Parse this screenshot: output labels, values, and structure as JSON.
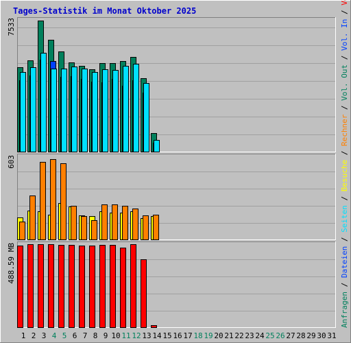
{
  "colors": {
    "background": "#c0c0c0",
    "grid": "#a0a0a0",
    "title": "#0000cc",
    "anfragen": "#00805c",
    "dateien": "#0040ff",
    "seiten": "#00e0ff",
    "besuche": "#ffff00",
    "rechner": "#ff8000",
    "volumen": "#ff0000",
    "weekend": "#00805c",
    "weekday": "#000000"
  },
  "chart_data": [
    {
      "type": "bar",
      "title": "Tages-Statistik im Monat Oktober 2025",
      "ymax_label": "7533",
      "ylim": [
        0,
        7533
      ],
      "grid": true,
      "categories": [
        "1",
        "2",
        "3",
        "4",
        "5",
        "6",
        "7",
        "8",
        "9",
        "10",
        "11",
        "12",
        "13",
        "14",
        "15",
        "16",
        "17",
        "18",
        "19",
        "20",
        "21",
        "22",
        "23",
        "24",
        "25",
        "26",
        "27",
        "28",
        "29",
        "30",
        "31"
      ],
      "weekend": [
        "4",
        "5",
        "11",
        "12",
        "18",
        "19",
        "25",
        "26"
      ],
      "series": [
        {
          "name": "Anfragen",
          "values": [
            4850,
            5250,
            7533,
            6450,
            5750,
            5150,
            4950,
            4750,
            5100,
            5100,
            5200,
            5450,
            4250,
            1100,
            0,
            0,
            0,
            0,
            0,
            0,
            0,
            0,
            0,
            0,
            0,
            0,
            0,
            0,
            0,
            0,
            0
          ]
        },
        {
          "name": "Dateien",
          "values": [
            4100,
            4400,
            5300,
            5200,
            4300,
            4350,
            4200,
            4050,
            4000,
            4200,
            3800,
            4100,
            3400,
            550,
            0,
            0,
            0,
            0,
            0,
            0,
            0,
            0,
            0,
            0,
            0,
            0,
            0,
            0,
            0,
            0,
            0
          ]
        },
        {
          "name": "Seiten",
          "values": [
            4600,
            4850,
            5700,
            4800,
            4800,
            4900,
            4800,
            4600,
            4750,
            4700,
            4950,
            5050,
            3950,
            700,
            0,
            0,
            0,
            0,
            0,
            0,
            0,
            0,
            0,
            0,
            0,
            0,
            0,
            0,
            0,
            0,
            0
          ]
        }
      ],
      "right_legend": [
        {
          "label": "Anfragen",
          "color_key": "anfragen"
        },
        {
          "label": "/",
          "color_key": "weekday"
        },
        {
          "label": "Dateien",
          "color_key": "dateien"
        },
        {
          "label": "/",
          "color_key": "weekday"
        },
        {
          "label": "Seiten",
          "color_key": "seiten"
        },
        {
          "label": "/",
          "color_key": "weekday"
        },
        {
          "label": "Besuche",
          "color_key": "besuche"
        },
        {
          "label": "/",
          "color_key": "weekday"
        },
        {
          "label": "Rechner",
          "color_key": "rechner"
        },
        {
          "label": "/",
          "color_key": "weekday"
        },
        {
          "label": "Vol. Out",
          "color_key": "anfragen"
        },
        {
          "label": "/",
          "color_key": "weekday"
        },
        {
          "label": "Vol. In",
          "color_key": "dateien"
        },
        {
          "label": "/",
          "color_key": "weekday"
        },
        {
          "label": "Volumen",
          "color_key": "volumen"
        }
      ]
    },
    {
      "type": "bar",
      "ymax_label": "603",
      "ylim": [
        0,
        603
      ],
      "grid": true,
      "series": [
        {
          "name": "Besuche",
          "values": [
            165,
            215,
            210,
            185,
            265,
            240,
            180,
            175,
            210,
            200,
            200,
            210,
            160,
            175,
            0,
            0,
            0,
            0,
            0,
            0,
            0,
            0,
            0,
            0,
            0,
            0,
            0,
            0,
            0,
            0,
            0
          ]
        },
        {
          "name": "Rechner",
          "values": [
            135,
            320,
            565,
            585,
            555,
            245,
            175,
            145,
            255,
            255,
            245,
            225,
            180,
            185,
            0,
            0,
            0,
            0,
            0,
            0,
            0,
            0,
            0,
            0,
            0,
            0,
            0,
            0,
            0,
            0,
            0
          ]
        }
      ]
    },
    {
      "type": "bar",
      "ymax_label": "488.59 MB",
      "ylim": [
        0,
        488.59
      ],
      "unit": "MB",
      "grid": true,
      "series": [
        {
          "name": "Volumen",
          "values": [
            472,
            481,
            481,
            480,
            477,
            477,
            472,
            472,
            476,
            476,
            461,
            480,
            395,
            15,
            0,
            0,
            0,
            0,
            0,
            0,
            0,
            0,
            0,
            0,
            0,
            0,
            0,
            0,
            0,
            0,
            0
          ]
        }
      ]
    }
  ]
}
